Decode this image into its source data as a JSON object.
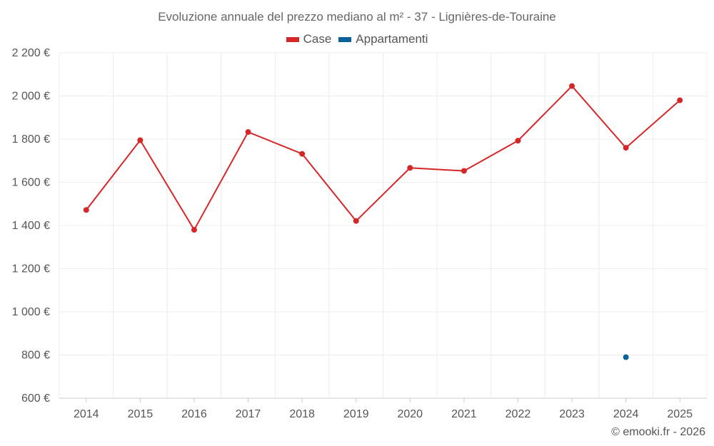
{
  "chart_data": {
    "type": "line",
    "title": "Evoluzione annuale del prezzo mediano al m² - 37 - Lignières-de-Touraine",
    "categories": [
      "2014",
      "2015",
      "2016",
      "2017",
      "2018",
      "2019",
      "2020",
      "2021",
      "2022",
      "2023",
      "2024",
      "2025"
    ],
    "series": [
      {
        "name": "Case",
        "color": "#d62728",
        "values": [
          1472,
          1795,
          1380,
          1833,
          1732,
          1421,
          1667,
          1653,
          1793,
          2046,
          1760,
          1980
        ]
      },
      {
        "name": "Appartamenti",
        "color": "#08629a",
        "values": [
          null,
          null,
          null,
          null,
          null,
          null,
          null,
          null,
          null,
          null,
          790,
          null
        ]
      }
    ],
    "ylim": [
      600,
      2200
    ],
    "yticks": [
      600,
      800,
      1000,
      1200,
      1400,
      1600,
      1800,
      2000,
      2200
    ],
    "ytick_labels": [
      "600 €",
      "800 €",
      "1 000 €",
      "1 200 €",
      "1 400 €",
      "1 600 €",
      "1 800 €",
      "2 000 €",
      "2 200 €"
    ],
    "xlabel": "",
    "ylabel": "",
    "grid": true,
    "legend_position": "top-center"
  },
  "credit": "© emooki.fr - 2026"
}
